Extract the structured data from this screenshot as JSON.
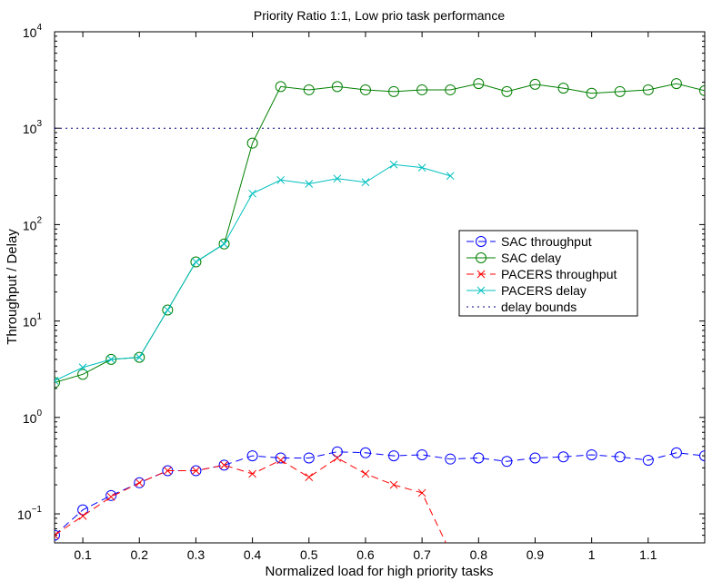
{
  "chart_data": {
    "type": "line",
    "title": "Priority Ratio 1:1, Low prio task performance",
    "xlabel": "Normalized load for high priority tasks",
    "ylabel": "Throughput / Delay",
    "xlim": [
      0.05,
      1.2
    ],
    "ylim": [
      0.05,
      10000
    ],
    "yscale": "log",
    "x_ticks": [
      0.1,
      0.2,
      0.3,
      0.4,
      0.5,
      0.6,
      0.7,
      0.8,
      0.9,
      1,
      1.1
    ],
    "x_tick_labels": [
      "0.1",
      "0.2",
      "0.3",
      "0.4",
      "0.5",
      "0.6",
      "0.7",
      "0.8",
      "0.9",
      "1",
      "1.1"
    ],
    "y_ticks": [
      0.1,
      1,
      10,
      100,
      1000,
      10000
    ],
    "y_tick_labels": [
      {
        "base": "10",
        "exp": "−1"
      },
      {
        "base": "10",
        "exp": "0"
      },
      {
        "base": "10",
        "exp": "1"
      },
      {
        "base": "10",
        "exp": "2"
      },
      {
        "base": "10",
        "exp": "3"
      },
      {
        "base": "10",
        "exp": "4"
      }
    ],
    "grid": false,
    "legend_position": "center-right",
    "series": [
      {
        "name": "SAC throughput",
        "color": "#0000ff",
        "line": "dashed",
        "marker": "circle",
        "x": [
          0.05,
          0.1,
          0.15,
          0.2,
          0.25,
          0.3,
          0.35,
          0.4,
          0.45,
          0.5,
          0.55,
          0.6,
          0.65,
          0.7,
          0.75,
          0.8,
          0.85,
          0.9,
          0.95,
          1.0,
          1.05,
          1.1,
          1.15,
          1.2
        ],
        "y": [
          0.06,
          0.11,
          0.155,
          0.21,
          0.28,
          0.28,
          0.32,
          0.4,
          0.38,
          0.38,
          0.44,
          0.43,
          0.4,
          0.41,
          0.37,
          0.38,
          0.35,
          0.38,
          0.39,
          0.41,
          0.39,
          0.36,
          0.43,
          0.4
        ]
      },
      {
        "name": "SAC delay",
        "color": "#007f00",
        "line": "solid",
        "marker": "circle",
        "x": [
          0.05,
          0.1,
          0.15,
          0.2,
          0.25,
          0.3,
          0.35,
          0.4,
          0.45,
          0.5,
          0.55,
          0.6,
          0.65,
          0.7,
          0.75,
          0.8,
          0.85,
          0.9,
          0.95,
          1.0,
          1.05,
          1.1,
          1.15,
          1.2
        ],
        "y": [
          2.3,
          2.8,
          4.0,
          4.2,
          13,
          41,
          63,
          700,
          2700,
          2500,
          2700,
          2500,
          2400,
          2500,
          2500,
          2900,
          2400,
          2850,
          2600,
          2300,
          2400,
          2500,
          2900,
          2450
        ]
      },
      {
        "name": "PACERS throughput",
        "color": "#ff0000",
        "line": "dashed",
        "marker": "x",
        "x": [
          0.05,
          0.1,
          0.15,
          0.2,
          0.25,
          0.3,
          0.35,
          0.4,
          0.45,
          0.5,
          0.55,
          0.6,
          0.65,
          0.7,
          0.75
        ],
        "y": [
          0.06,
          0.095,
          0.15,
          0.21,
          0.28,
          0.28,
          0.32,
          0.26,
          0.36,
          0.24,
          0.38,
          0.26,
          0.2,
          0.165,
          0.04
        ]
      },
      {
        "name": "PACERS delay",
        "color": "#00bfbf",
        "line": "solid",
        "marker": "x",
        "x": [
          0.05,
          0.1,
          0.15,
          0.2,
          0.25,
          0.3,
          0.35,
          0.4,
          0.45,
          0.5,
          0.55,
          0.6,
          0.65,
          0.7,
          0.75
        ],
        "y": [
          2.4,
          3.3,
          4.0,
          4.2,
          13,
          41,
          63,
          210,
          290,
          265,
          300,
          275,
          420,
          390,
          320
        ]
      },
      {
        "name": "delay bounds",
        "color": "#00007f",
        "line": "dotted",
        "marker": "none",
        "x": [
          0.05,
          1.2
        ],
        "y": [
          1000,
          1000
        ]
      }
    ]
  }
}
